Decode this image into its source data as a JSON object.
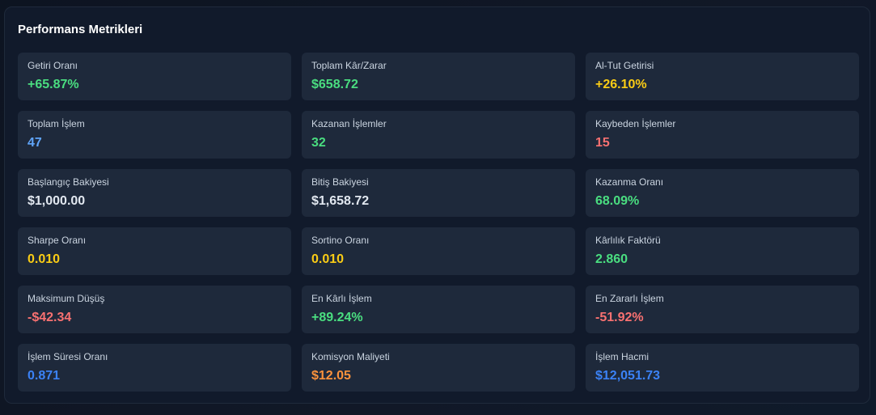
{
  "panel": {
    "title": "Performans Metrikleri",
    "metrics": [
      {
        "label": "Getiri Oranı",
        "value": "+65.87%",
        "color": "#4ade80"
      },
      {
        "label": "Toplam Kâr/Zarar",
        "value": "$658.72",
        "color": "#4ade80"
      },
      {
        "label": "Al-Tut Getirisi",
        "value": "+26.10%",
        "color": "#facc15"
      },
      {
        "label": "Toplam İşlem",
        "value": "47",
        "color": "#60a5fa"
      },
      {
        "label": "Kazanan İşlemler",
        "value": "32",
        "color": "#4ade80"
      },
      {
        "label": "Kaybeden İşlemler",
        "value": "15",
        "color": "#f87171"
      },
      {
        "label": "Başlangıç Bakiyesi",
        "value": "$1,000.00",
        "color": "#e2e8f0"
      },
      {
        "label": "Bitiş Bakiyesi",
        "value": "$1,658.72",
        "color": "#e2e8f0"
      },
      {
        "label": "Kazanma Oranı",
        "value": "68.09%",
        "color": "#4ade80"
      },
      {
        "label": "Sharpe Oranı",
        "value": "0.010",
        "color": "#facc15"
      },
      {
        "label": "Sortino Oranı",
        "value": "0.010",
        "color": "#facc15"
      },
      {
        "label": "Kârlılık Faktörü",
        "value": "2.860",
        "color": "#4ade80"
      },
      {
        "label": "Maksimum Düşüş",
        "value": "-$42.34",
        "color": "#f87171"
      },
      {
        "label": "En Kârlı İşlem",
        "value": "+89.24%",
        "color": "#4ade80"
      },
      {
        "label": "En Zararlı İşlem",
        "value": "-51.92%",
        "color": "#f87171"
      },
      {
        "label": "İşlem Süresi Oranı",
        "value": "0.871",
        "color": "#3b82f6"
      },
      {
        "label": "Komisyon Maliyeti",
        "value": "$12.05",
        "color": "#fb923c"
      },
      {
        "label": "İşlem Hacmi",
        "value": "$12,051.73",
        "color": "#3b82f6"
      }
    ]
  }
}
